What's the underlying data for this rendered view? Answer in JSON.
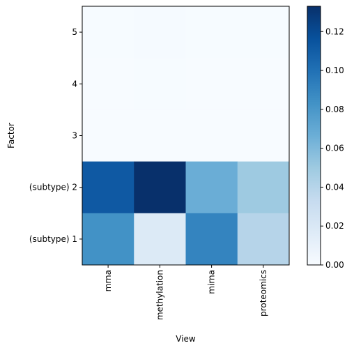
{
  "chart_data": {
    "type": "heatmap",
    "xlabel": "View",
    "ylabel": "Factor",
    "x_categories": [
      "mrna",
      "methylation",
      "mirna",
      "proteomics"
    ],
    "y_categories": [
      "5",
      "4",
      "3",
      "(subtype) 2",
      "(subtype) 1"
    ],
    "values": [
      [
        0.0005,
        0.001,
        0.0005,
        0.0005
      ],
      [
        0.0,
        0.0005,
        0.0,
        0.0
      ],
      [
        0.0,
        0.0,
        0.0,
        0.0
      ],
      [
        0.112,
        0.133,
        0.067,
        0.05
      ],
      [
        0.083,
        0.018,
        0.09,
        0.04
      ]
    ],
    "colormap": "Blues",
    "vmin": 0.0,
    "vmax": 0.133,
    "colorbar": {
      "ticks": [
        0.0,
        0.02,
        0.04,
        0.06,
        0.08,
        0.1,
        0.12
      ],
      "tick_labels": [
        "0.00",
        "0.02",
        "0.04",
        "0.06",
        "0.08",
        "0.10",
        "0.12"
      ]
    }
  }
}
